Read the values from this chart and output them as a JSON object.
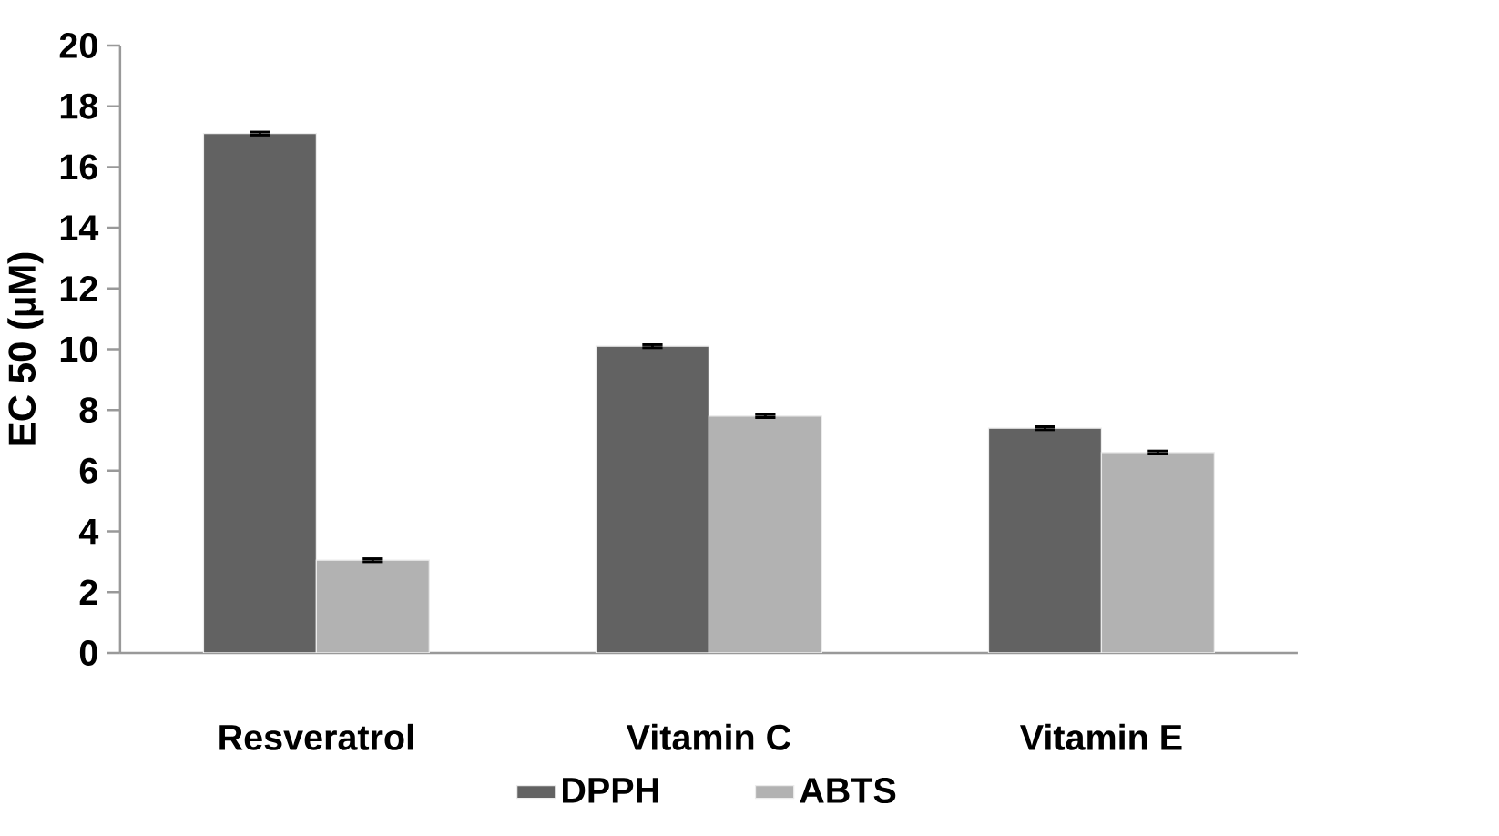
{
  "chart_data": {
    "type": "bar",
    "ylabel": "EC 50 (µM)",
    "categories": [
      "Resveratrol",
      "Vitamin C",
      "Vitamin E"
    ],
    "series": [
      {
        "name": "DPPH",
        "color": "#626262",
        "values": [
          17.1,
          10.1,
          7.4
        ],
        "errors": [
          0.05,
          0.05,
          0.05
        ]
      },
      {
        "name": "ABTS",
        "color": "#b2b2b2",
        "values": [
          3.05,
          7.8,
          6.6
        ],
        "errors": [
          0.05,
          0.05,
          0.05
        ]
      }
    ],
    "ylim": [
      0,
      20
    ],
    "yticks": [
      0,
      2,
      4,
      6,
      8,
      10,
      12,
      14,
      16,
      18,
      20
    ],
    "grid": false,
    "legend": "bottom"
  }
}
